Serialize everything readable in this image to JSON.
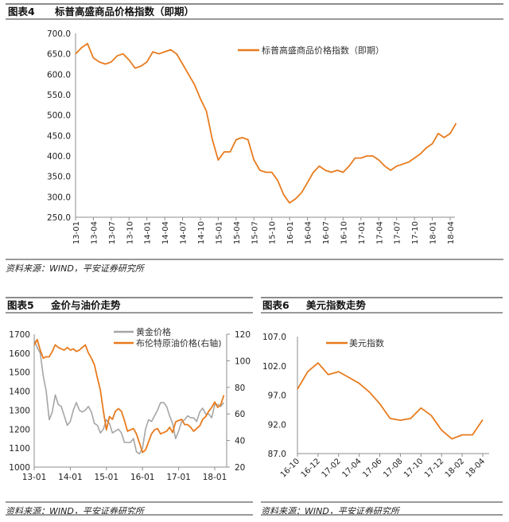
{
  "source_text": "资料来源：WIND，平安证券研究所",
  "chart_data": [
    {
      "type": "line",
      "figure_label": "图表4",
      "title": "标普高盛商品价格指数（即期）",
      "legend": [
        "标普高盛商品价格指数（即期）"
      ],
      "legend_position": "top-right",
      "ylim": [
        250,
        700
      ],
      "yticks": [
        "700.0",
        "650.0",
        "600.0",
        "550.0",
        "500.0",
        "450.0",
        "400.0",
        "350.0",
        "300.0",
        "250.0"
      ],
      "xticks": [
        "13-01",
        "13-04",
        "13-07",
        "13-10",
        "14-01",
        "14-04",
        "14-07",
        "14-10",
        "15-01",
        "15-04",
        "15-07",
        "15-10",
        "16-01",
        "16-04",
        "16-07",
        "16-10",
        "17-01",
        "17-04",
        "17-07",
        "17-10",
        "18-01",
        "18-04"
      ],
      "x_start": "2013-01",
      "x_step": "month",
      "series": [
        {
          "name": "标普高盛商品价格指数（即期）",
          "color": "#e87b1e",
          "values": [
            650,
            665,
            675,
            640,
            630,
            625,
            630,
            645,
            650,
            635,
            615,
            620,
            630,
            655,
            650,
            655,
            660,
            650,
            625,
            600,
            575,
            540,
            510,
            440,
            390,
            410,
            410,
            440,
            445,
            440,
            390,
            365,
            360,
            360,
            340,
            305,
            285,
            295,
            310,
            335,
            360,
            375,
            365,
            360,
            365,
            360,
            375,
            395,
            395,
            400,
            400,
            390,
            375,
            365,
            375,
            380,
            385,
            395,
            405,
            420,
            430,
            455,
            445,
            455,
            480
          ]
        }
      ]
    },
    {
      "type": "line",
      "figure_label": "图表5",
      "title": "金价与油价走势",
      "legend": [
        "黄金价格",
        "布伦特原油价格(右轴)"
      ],
      "legend_position": "top-right",
      "ylim": [
        1000,
        1700
      ],
      "y2lim": [
        20,
        120
      ],
      "yticks": [
        "1700",
        "1600",
        "1500",
        "1400",
        "1300",
        "1200",
        "1100",
        "1000"
      ],
      "y2ticks": [
        "120",
        "100",
        "80",
        "60",
        "40",
        "20"
      ],
      "xticks": [
        "13-01",
        "14-01",
        "15-01",
        "16-01",
        "17-01",
        "18-01"
      ],
      "x_start": "2013-01",
      "x_step": "month",
      "series": [
        {
          "name": "黄金价格",
          "axis": "left",
          "color": "#a6a6a6",
          "values": [
            1670,
            1630,
            1600,
            1480,
            1400,
            1250,
            1290,
            1380,
            1330,
            1320,
            1270,
            1220,
            1240,
            1300,
            1340,
            1300,
            1290,
            1300,
            1320,
            1290,
            1230,
            1220,
            1180,
            1200,
            1250,
            1230,
            1180,
            1190,
            1200,
            1180,
            1130,
            1130,
            1130,
            1150,
            1080,
            1070,
            1100,
            1200,
            1250,
            1240,
            1270,
            1300,
            1340,
            1340,
            1320,
            1270,
            1230,
            1150,
            1190,
            1240,
            1250,
            1270,
            1260,
            1260,
            1240,
            1290,
            1310,
            1280,
            1280,
            1260,
            1330,
            1330,
            1320,
            1340
          ]
        },
        {
          "name": "布伦特原油价格(右轴)",
          "axis": "right",
          "color": "#e87b1e",
          "values": [
            112,
            116,
            108,
            102,
            103,
            103,
            107,
            112,
            110,
            109,
            108,
            110,
            108,
            109,
            107,
            108,
            110,
            112,
            106,
            102,
            97,
            87,
            78,
            62,
            48,
            58,
            56,
            62,
            64,
            62,
            55,
            47,
            48,
            49,
            45,
            38,
            31,
            33,
            39,
            45,
            48,
            49,
            45,
            46,
            47,
            50,
            46,
            54,
            55,
            56,
            52,
            52,
            50,
            47,
            49,
            51,
            56,
            58,
            62,
            65,
            69,
            65,
            67,
            74
          ]
        }
      ]
    },
    {
      "type": "line",
      "figure_label": "图表6",
      "title": "美元指数走势",
      "legend": [
        "美元指数"
      ],
      "legend_position": "top-left",
      "ylim": [
        87,
        107
      ],
      "yticks": [
        "107.0",
        "102.0",
        "97.0",
        "92.0",
        "87.0"
      ],
      "xticks": [
        "16-10",
        "16-12",
        "17-02",
        "17-04",
        "17-06",
        "17-08",
        "17-10",
        "17-12",
        "18-02",
        "18-04"
      ],
      "x_start": "2016-10",
      "x_step": "month",
      "series": [
        {
          "name": "美元指数",
          "color": "#e87b1e",
          "values": [
            98,
            101,
            102.5,
            100.5,
            101,
            100,
            99,
            97.5,
            95.5,
            93,
            92.7,
            93,
            94.8,
            93.5,
            91,
            89.5,
            90.2,
            90.2,
            92.8
          ]
        }
      ]
    }
  ]
}
